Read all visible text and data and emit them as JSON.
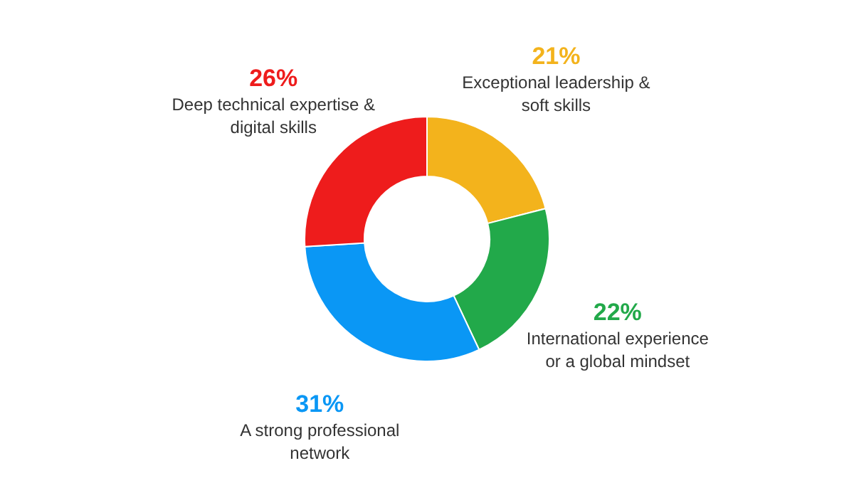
{
  "chart_data": {
    "type": "donut",
    "categories": [
      "Exceptional leadership & soft skills",
      "International experience or a global mindset",
      "A strong professional network",
      "Deep technical expertise & digital skills"
    ],
    "values": [
      21,
      22,
      31,
      26
    ],
    "colors": [
      "#f3b31c",
      "#22a94a",
      "#0a97f5",
      "#ee1c1c"
    ],
    "value_labels": [
      "21%",
      "22%",
      "31%",
      "26%"
    ]
  }
}
